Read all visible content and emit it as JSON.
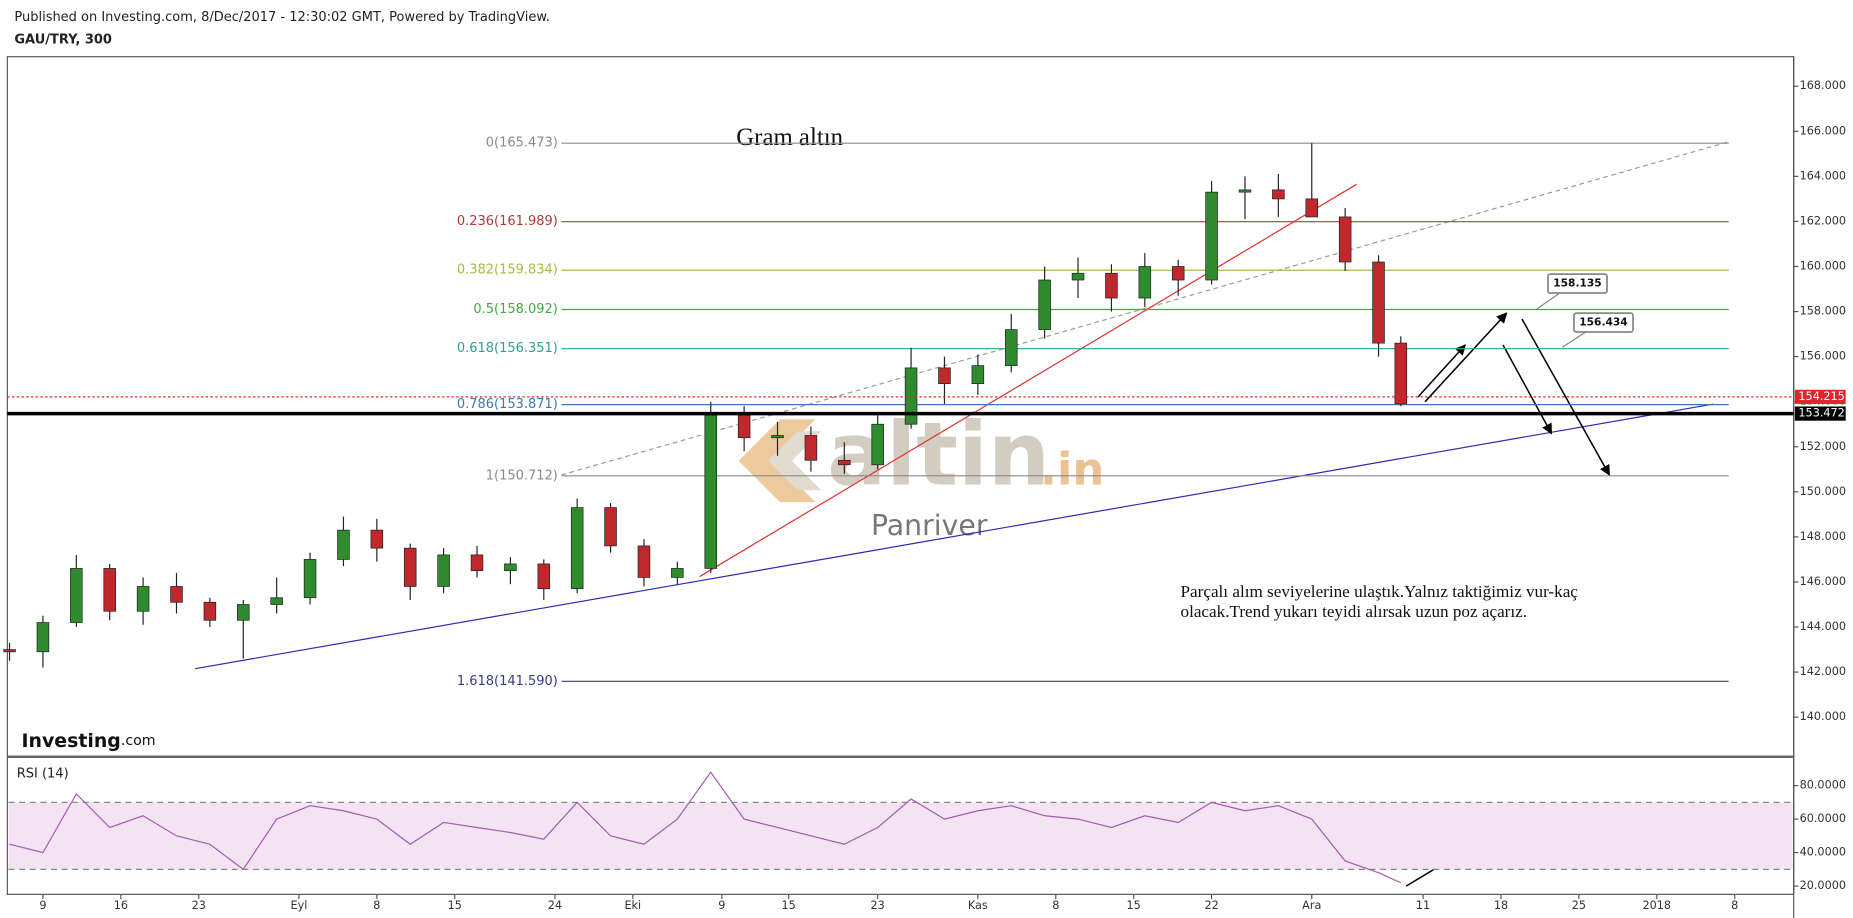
{
  "header": {
    "published": "Published on Investing.com, 8/Dec/2017 - 12:30:02 GMT, Powered by TradingView.",
    "symbol": "GAU/TRY, 300"
  },
  "watermark": {
    "text": "altin",
    "suffix": ".in",
    "caption": "Panriver"
  },
  "logo": {
    "text": "Investing",
    "suffix": ".com"
  },
  "chart_data": [
    {
      "type": "candlestick",
      "title": "Gram altın",
      "x": [
        6,
        9,
        12,
        15,
        18,
        21,
        24,
        27,
        30,
        33,
        36,
        39,
        42,
        45,
        48,
        51,
        54,
        57,
        60,
        63,
        66,
        69,
        72,
        75,
        78,
        81,
        84,
        87,
        90,
        93,
        96,
        99,
        102,
        105,
        108,
        111,
        114,
        117,
        120,
        123,
        126,
        129,
        131
      ],
      "open": [
        143.0,
        142.9,
        144.2,
        146.6,
        144.7,
        145.8,
        145.1,
        144.3,
        145.0,
        145.3,
        147.0,
        148.3,
        147.5,
        145.8,
        147.2,
        146.5,
        146.8,
        145.7,
        149.3,
        147.6,
        146.2,
        146.6,
        153.4,
        152.4,
        152.5,
        151.4,
        151.2,
        153.0,
        155.5,
        154.8,
        155.6,
        157.2,
        159.4,
        159.7,
        158.6,
        160.0,
        159.4,
        163.3,
        163.4,
        163.0,
        162.2,
        160.2,
        156.6
      ],
      "high": [
        143.3,
        144.5,
        147.2,
        146.8,
        146.2,
        146.4,
        145.3,
        145.2,
        146.2,
        147.3,
        148.9,
        148.8,
        147.7,
        147.5,
        147.6,
        147.1,
        147.0,
        149.7,
        149.5,
        147.9,
        146.9,
        154.0,
        153.8,
        153.1,
        152.9,
        152.2,
        153.4,
        156.4,
        156.0,
        156.1,
        157.9,
        160.0,
        160.4,
        160.1,
        160.6,
        160.3,
        163.8,
        164.0,
        164.1,
        165.47,
        162.6,
        160.5,
        156.9
      ],
      "low": [
        142.5,
        142.2,
        144.0,
        144.3,
        144.1,
        144.6,
        144.0,
        142.6,
        144.6,
        145.0,
        146.7,
        146.9,
        145.2,
        145.5,
        146.2,
        145.9,
        145.2,
        145.5,
        147.3,
        145.8,
        145.9,
        146.4,
        151.8,
        151.6,
        150.9,
        150.8,
        151.0,
        152.8,
        153.9,
        154.3,
        155.3,
        156.8,
        158.6,
        158.0,
        158.2,
        158.7,
        159.2,
        162.1,
        162.2,
        162.4,
        159.8,
        156.0,
        153.8
      ],
      "close": [
        142.9,
        144.2,
        146.6,
        144.7,
        145.8,
        145.1,
        144.3,
        145.0,
        145.3,
        147.0,
        148.3,
        147.5,
        145.8,
        147.2,
        146.5,
        146.8,
        145.7,
        149.3,
        147.6,
        146.2,
        146.6,
        153.4,
        152.4,
        152.5,
        151.4,
        151.2,
        153.0,
        155.5,
        154.8,
        155.6,
        157.2,
        159.4,
        159.7,
        158.6,
        160.0,
        159.4,
        163.3,
        163.4,
        163.0,
        162.2,
        160.2,
        156.6,
        153.9
      ],
      "up_color": "#2e8b2e",
      "down_color": "#c0282d",
      "xlim": [
        5.8,
        166.3
      ],
      "ylim": [
        138.27,
        169.31
      ],
      "yticks": [
        {
          "value": 140,
          "label": "140.000"
        },
        {
          "value": 142,
          "label": "142.000"
        },
        {
          "value": 144,
          "label": "144.000"
        },
        {
          "value": 146,
          "label": "146.000"
        },
        {
          "value": 148,
          "label": "148.000"
        },
        {
          "value": 150,
          "label": "150.000"
        },
        {
          "value": 152,
          "label": "152.000"
        },
        {
          "value": 154,
          "label": "154.000"
        },
        {
          "value": 156,
          "label": "156.000"
        },
        {
          "value": 158,
          "label": "158.000"
        },
        {
          "value": 160,
          "label": "160.000"
        },
        {
          "value": 162,
          "label": "162.000"
        },
        {
          "value": 164,
          "label": "164.000"
        },
        {
          "value": 166,
          "label": "166.000"
        },
        {
          "value": 168,
          "label": "168.000"
        }
      ],
      "fib_levels": [
        {
          "ratio": 0,
          "price": 165.473,
          "label": "0(165.473)",
          "color": "#8a8a8a"
        },
        {
          "ratio": 0.236,
          "price": 161.989,
          "label": "0.236(161.989)",
          "color": "#b33a3a"
        },
        {
          "ratio": 0.382,
          "price": 159.834,
          "label": "0.382(159.834)",
          "color": "#a8b84a"
        },
        {
          "ratio": 0.5,
          "price": 158.092,
          "label": "0.5(158.092)",
          "color": "#45a845"
        },
        {
          "ratio": 0.618,
          "price": 156.351,
          "label": "0.618(156.351)",
          "color": "#2aa394"
        },
        {
          "ratio": 0.786,
          "price": 153.871,
          "label": "0.786(153.871)",
          "color": "#3b78b5"
        },
        {
          "ratio": 1,
          "price": 150.712,
          "label": "1(150.712)",
          "color": "#8a8a8a"
        },
        {
          "ratio": 1.618,
          "price": 141.59,
          "label": "1.618(141.590)",
          "color": "#3a3a8c"
        }
      ],
      "price_markers": [
        {
          "value": 154.215,
          "color": "#e0262b"
        },
        {
          "value": 153.472,
          "color": "#000000"
        }
      ],
      "callouts": [
        158.135,
        156.434
      ],
      "annotation": [
        "Parçalı alım seviyelerine ulaştık.Yalnız taktiğimiz vur-kaç",
        "olacak.Trend yukarı teyidi alırsak uzun poz açarız."
      ]
    },
    {
      "type": "line",
      "title": "RSI (14)",
      "color": "#a35ab0",
      "x": [
        6,
        9,
        12,
        15,
        18,
        21,
        24,
        27,
        30,
        33,
        36,
        39,
        42,
        45,
        48,
        51,
        54,
        57,
        60,
        63,
        66,
        69,
        72,
        75,
        78,
        81,
        84,
        87,
        90,
        93,
        96,
        99,
        102,
        105,
        108,
        111,
        114,
        117,
        120,
        123,
        126,
        129,
        131
      ],
      "values": [
        45,
        40,
        75,
        55,
        62,
        50,
        45,
        30,
        60,
        68,
        65,
        60,
        45,
        58,
        55,
        52,
        48,
        70,
        50,
        45,
        60,
        88,
        60,
        55,
        50,
        45,
        55,
        72,
        60,
        65,
        68,
        62,
        60,
        55,
        62,
        58,
        70,
        65,
        68,
        60,
        35,
        28,
        22
      ],
      "bands": [
        30,
        70
      ],
      "band_color": "#f3e3f3",
      "xlim": [
        5.8,
        166.3
      ],
      "ylim": [
        15.06,
        96.9
      ],
      "yticks": [
        {
          "value": 20,
          "label": "20.0000"
        },
        {
          "value": 40,
          "label": "40.0000"
        },
        {
          "value": 60,
          "label": "60.0000"
        },
        {
          "value": 80,
          "label": "80.0000"
        }
      ],
      "xticks": [
        9,
        16,
        23,
        {
          "value": 32,
          "label": "Eyl"
        },
        {
          "value": 39,
          "label": "8"
        },
        {
          "value": 46,
          "label": "15"
        },
        {
          "value": 55,
          "label": "24"
        },
        {
          "value": 62,
          "label": "Eki"
        },
        {
          "value": 70,
          "label": "9"
        },
        {
          "value": 76,
          "label": "15"
        },
        {
          "value": 84,
          "label": "23"
        },
        {
          "value": 93,
          "label": "Kas"
        },
        {
          "value": 100,
          "label": "8"
        },
        {
          "value": 107,
          "label": "15"
        },
        {
          "value": 114,
          "label": "22"
        },
        {
          "value": 123,
          "label": "Ara"
        },
        {
          "value": 133,
          "label": "11"
        },
        {
          "value": 140,
          "label": "18"
        },
        {
          "value": 147,
          "label": "25"
        },
        {
          "value": 154,
          "label": "2018"
        },
        {
          "value": 161,
          "label": "8"
        }
      ]
    }
  ]
}
